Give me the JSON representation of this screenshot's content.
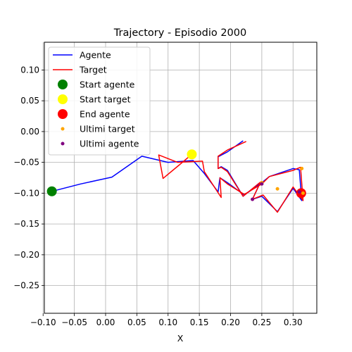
{
  "chart_data": {
    "type": "line",
    "title": "Trajectory - Episodio 2000",
    "xlabel": "X",
    "ylabel": "",
    "xlim": [
      -0.098,
      0.338
    ],
    "ylim": [
      -0.295,
      0.145
    ],
    "xticks": [
      -0.1,
      -0.05,
      0.0,
      0.05,
      0.1,
      0.15,
      0.2,
      0.25,
      0.3
    ],
    "xtick_labels": [
      "−0.10",
      "−0.05",
      "0.00",
      "0.05",
      "0.10",
      "0.15",
      "0.20",
      "0.25",
      "0.30"
    ],
    "yticks": [
      0.1,
      0.05,
      0.0,
      -0.05,
      -0.1,
      -0.15,
      -0.2,
      -0.25
    ],
    "ytick_labels": [
      "0.10",
      "0.05",
      "0.00",
      "−0.05",
      "−0.10",
      "−0.15",
      "−0.20",
      "−0.25"
    ],
    "grid": true,
    "legend_position": "top-left",
    "series": [
      {
        "name": "Agente",
        "color": "#0000ff",
        "kind": "line",
        "x": [
          -0.086,
          -0.04,
          0.01,
          0.058,
          0.1,
          0.14,
          0.158,
          0.18,
          0.183,
          0.195,
          0.222,
          0.25,
          0.262,
          0.3,
          0.31,
          0.314,
          0.3,
          0.275,
          0.25,
          0.235,
          0.248,
          0.22,
          0.195,
          0.185,
          0.18,
          0.18,
          0.195,
          0.22
        ],
        "y": [
          -0.097,
          -0.085,
          -0.074,
          -0.04,
          -0.05,
          -0.047,
          -0.068,
          -0.098,
          -0.075,
          -0.083,
          -0.103,
          -0.083,
          -0.073,
          -0.06,
          -0.062,
          -0.112,
          -0.092,
          -0.13,
          -0.105,
          -0.11,
          -0.082,
          -0.105,
          -0.063,
          -0.057,
          -0.06,
          -0.041,
          -0.033,
          -0.015
        ]
      },
      {
        "name": "Target",
        "color": "#ff0000",
        "kind": "line",
        "x": [
          0.138,
          0.117,
          0.092,
          0.085,
          0.115,
          0.155,
          0.158,
          0.185,
          0.183,
          0.195,
          0.222,
          0.25,
          0.262,
          0.3,
          0.312,
          0.316,
          0.3,
          0.275,
          0.252,
          0.235,
          0.248,
          0.22,
          0.195,
          0.185,
          0.18,
          0.18,
          0.195,
          0.225
        ],
        "y": [
          -0.037,
          -0.055,
          -0.076,
          -0.038,
          -0.05,
          -0.048,
          -0.065,
          -0.107,
          -0.075,
          -0.085,
          -0.102,
          -0.085,
          -0.073,
          -0.063,
          -0.058,
          -0.112,
          -0.09,
          -0.131,
          -0.103,
          -0.11,
          -0.082,
          -0.105,
          -0.065,
          -0.058,
          -0.06,
          -0.04,
          -0.03,
          -0.016
        ]
      },
      {
        "name": "Start agente",
        "color": "#008000",
        "kind": "marker",
        "x": [
          -0.086
        ],
        "y": [
          -0.097
        ]
      },
      {
        "name": "Start target",
        "color": "#ffff00",
        "kind": "marker",
        "x": [
          0.138
        ],
        "y": [
          -0.037
        ]
      },
      {
        "name": "End agente",
        "color": "#ff0000",
        "kind": "marker",
        "x": [
          0.313
        ],
        "y": [
          -0.1
        ]
      },
      {
        "name": "Ultimi target",
        "color": "#ffa500",
        "kind": "scatter",
        "x": [
          0.275,
          0.314,
          0.25,
          0.316
        ],
        "y": [
          -0.093,
          -0.06,
          -0.083,
          -0.1
        ]
      },
      {
        "name": "Ultimi agente",
        "color": "#800080",
        "kind": "scatter",
        "x": [
          0.235,
          0.25,
          0.31
        ],
        "y": [
          -0.11,
          -0.085,
          -0.098
        ]
      }
    ]
  }
}
